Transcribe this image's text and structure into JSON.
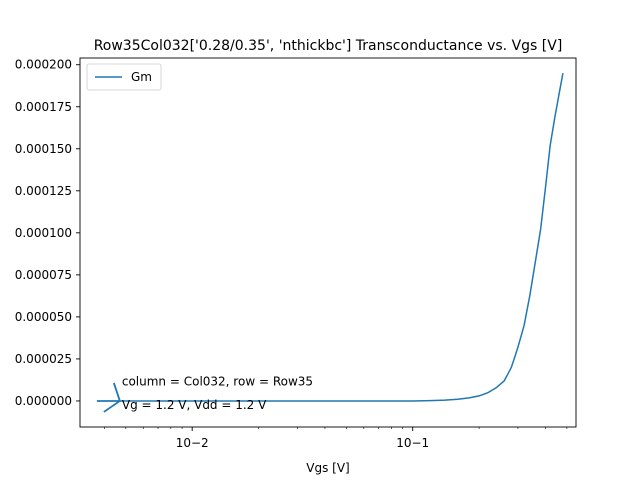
{
  "chart_data": {
    "type": "line",
    "title": "Row35Col032['0.28/0.35', 'nthickbc'] Transconductance vs. Vgs [V]",
    "xlabel": "Vgs [V]",
    "ylabel": "",
    "xscale": "log",
    "xlim": [
      0.0031,
      0.55
    ],
    "ylim": [
      -1.55e-05,
      0.000204
    ],
    "x_ticks": [
      {
        "value": 0.01,
        "label": "10−2"
      },
      {
        "value": 0.1,
        "label": "10−1"
      }
    ],
    "y_ticks": [
      {
        "value": 0.0,
        "label": "0.000000"
      },
      {
        "value": 2.5e-05,
        "label": "0.000025"
      },
      {
        "value": 5e-05,
        "label": "0.000050"
      },
      {
        "value": 7.5e-05,
        "label": "0.000075"
      },
      {
        "value": 0.0001,
        "label": "0.000100"
      },
      {
        "value": 0.000125,
        "label": "0.000125"
      },
      {
        "value": 0.00015,
        "label": "0.000150"
      },
      {
        "value": 0.000175,
        "label": "0.000175"
      },
      {
        "value": 0.0002,
        "label": "0.000200"
      }
    ],
    "legend": {
      "placement": "upper-left"
    },
    "grid": false,
    "series": [
      {
        "name": "Gm",
        "color": "#1f77b4",
        "points": [
          [
            0.0037,
            0.0
          ],
          [
            0.0047,
            0.0
          ],
          [
            0.006,
            0.0
          ],
          [
            0.008,
            0.0
          ],
          [
            0.01,
            0.0
          ],
          [
            0.015,
            0.0
          ],
          [
            0.02,
            0.0
          ],
          [
            0.03,
            0.0
          ],
          [
            0.05,
            0.0
          ],
          [
            0.07,
            0.0
          ],
          [
            0.1,
            0.0
          ],
          [
            0.12,
            2e-07
          ],
          [
            0.14,
            5e-07
          ],
          [
            0.16,
            1e-06
          ],
          [
            0.18,
            1.8e-06
          ],
          [
            0.2,
            3e-06
          ],
          [
            0.22,
            5e-06
          ],
          [
            0.24,
            8e-06
          ],
          [
            0.26,
            1.2e-05
          ],
          [
            0.27,
            1.6e-05
          ],
          [
            0.28,
            2e-05
          ],
          [
            0.29,
            2.6e-05
          ],
          [
            0.3,
            3.2e-05
          ],
          [
            0.32,
            4.5e-05
          ],
          [
            0.34,
            6.3e-05
          ],
          [
            0.36,
            8.3e-05
          ],
          [
            0.38,
            0.000102
          ],
          [
            0.4,
            0.000127
          ],
          [
            0.42,
            0.000152
          ],
          [
            0.44,
            0.000168
          ],
          [
            0.46,
            0.000182
          ],
          [
            0.48,
            0.000195
          ]
        ]
      }
    ],
    "annotations": [
      {
        "text": "column = Col032, row = Row35",
        "x": 0.0047,
        "y": 1.15e-05
      },
      {
        "text": "Vg = 1.2 V, Vdd = 1.2 V",
        "x": 0.0047,
        "y": -2.5e-06
      }
    ],
    "arrow": {
      "from": [
        0.0037,
        0.0
      ],
      "to": [
        0.0047,
        0.0
      ]
    }
  }
}
